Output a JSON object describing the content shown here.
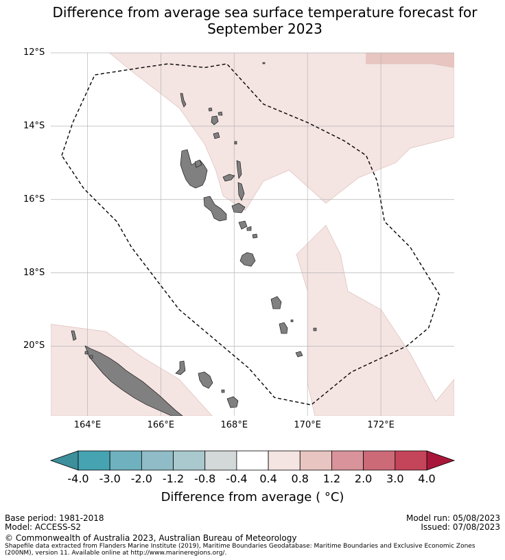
{
  "title_line1": "Difference from average sea surface temperature forecast for",
  "title_line2": "September 2023",
  "chart_data": {
    "type": "heatmap",
    "title": "Difference from average sea surface temperature forecast for September 2023",
    "xlabel": "",
    "ylabel": "",
    "xlim": [
      163,
      174
    ],
    "ylim": [
      -21.9,
      -12
    ],
    "xticks": [
      164,
      166,
      168,
      170,
      172
    ],
    "yticks": [
      -12,
      -14,
      -16,
      -18,
      -20
    ],
    "xtick_labels": [
      "164°E",
      "166°E",
      "168°E",
      "170°E",
      "172°E"
    ],
    "ytick_labels": [
      "12°S",
      "14°S",
      "16°S",
      "18°S",
      "20°S"
    ],
    "grid": true,
    "shaded_regions": [
      {
        "name": "north anomaly region",
        "category": "0.4 to 0.8",
        "lonlat": [
          [
            164.6,
            -12
          ],
          [
            174,
            -12
          ],
          [
            174,
            -14.3
          ],
          [
            172.8,
            -14.6
          ],
          [
            172.4,
            -15
          ],
          [
            171.4,
            -15.4
          ],
          [
            170.5,
            -16.1
          ],
          [
            169.5,
            -15.2
          ],
          [
            168.8,
            -15.5
          ],
          [
            168.3,
            -16.3
          ],
          [
            167.7,
            -15.9
          ],
          [
            167.5,
            -15.2
          ],
          [
            167.2,
            -14.5
          ],
          [
            166.5,
            -13.5
          ],
          [
            165.2,
            -12.5
          ]
        ]
      },
      {
        "name": "north-east warm patch",
        "category": "0.8 to 1.2",
        "lonlat": [
          [
            171.6,
            -12
          ],
          [
            174,
            -12
          ],
          [
            174,
            -12.4
          ],
          [
            173.4,
            -12.3
          ],
          [
            171.6,
            -12.3
          ]
        ]
      },
      {
        "name": "east anomaly region",
        "category": "0.4 to 0.8",
        "lonlat": [
          [
            169.7,
            -17.5
          ],
          [
            170.5,
            -16.7
          ],
          [
            170.9,
            -17.5
          ],
          [
            171.1,
            -18.5
          ],
          [
            172.0,
            -19.0
          ],
          [
            172.8,
            -20.2
          ],
          [
            173.5,
            -21.5
          ],
          [
            174,
            -20.9
          ],
          [
            174,
            -21.9
          ],
          [
            170.2,
            -21.9
          ],
          [
            170.0,
            -21.0
          ],
          [
            170.0,
            -18.5
          ]
        ]
      },
      {
        "name": "south-west anomaly region",
        "category": "0.4 to 0.8",
        "lonlat": [
          [
            163,
            -19.4
          ],
          [
            164.5,
            -19.6
          ],
          [
            165.5,
            -20.3
          ],
          [
            166.5,
            -20.9
          ],
          [
            167.4,
            -21.9
          ],
          [
            163,
            -21.9
          ]
        ]
      }
    ],
    "eez_boundary": [
      [
        163.3,
        -14.8
      ],
      [
        163.6,
        -13.9
      ],
      [
        164.2,
        -12.6
      ],
      [
        165.5,
        -12.4
      ],
      [
        166.2,
        -12.3
      ],
      [
        167.2,
        -12.4
      ],
      [
        167.8,
        -12.3
      ],
      [
        168.8,
        -13.4
      ],
      [
        170.0,
        -13.9
      ],
      [
        171.0,
        -14.4
      ],
      [
        171.6,
        -14.8
      ],
      [
        171.9,
        -15.5
      ],
      [
        172.1,
        -16.6
      ],
      [
        172.8,
        -17.3
      ],
      [
        173.6,
        -18.6
      ],
      [
        173.3,
        -19.5
      ],
      [
        172.7,
        -20.0
      ],
      [
        171.2,
        -20.7
      ],
      [
        170.1,
        -21.6
      ],
      [
        169.1,
        -21.4
      ],
      [
        168.4,
        -20.6
      ],
      [
        166.5,
        -19.0
      ],
      [
        165.2,
        -17.3
      ],
      [
        164.8,
        -16.6
      ],
      [
        163.9,
        -15.7
      ]
    ],
    "colorbar": {
      "label": "Difference from average ( °C)",
      "tick_labels": [
        "-4.0",
        "-3.0",
        "-2.0",
        "-1.2",
        "-0.8",
        "-0.4",
        "0.4",
        "0.8",
        "1.2",
        "2.0",
        "3.0",
        "4.0"
      ],
      "bounds": [
        -4.0,
        -3.0,
        -2.0,
        -1.2,
        -0.8,
        -0.4,
        0.4,
        0.8,
        1.2,
        2.0,
        3.0,
        4.0
      ],
      "colors": [
        "#46a3b2",
        "#6fb1be",
        "#8fbcc6",
        "#a9c9ce",
        "#d3d9d9",
        "#ffffff",
        "#f4e4e2",
        "#e8c5c0",
        "#d9939a",
        "#cc6a78",
        "#c4445a"
      ],
      "under_color": "#3d8f9c",
      "over_color": "#a8173a"
    }
  },
  "colors": {
    "land": "#808080",
    "grid": "#b5b5b5",
    "anomaly_light": "#f4e4e2",
    "anomaly_mid": "#e8c5c0",
    "boundary": "#000000"
  },
  "footer": {
    "base_period": "Base period: 1981-2018",
    "model": "Model: ACCESS-S2",
    "copyright": "© Commonwealth of Australia 2023, Australian Bureau of Meteorology",
    "source_line1": "Shapefile data extracted from Flanders Marine Institute (2019), Maritime Boundaries Geodatabase: Maritime Boundaries and Exclusive Economic Zones",
    "source_line2": "(200NM), version 11. Available online at http://www.marineregions.org/.",
    "model_run": "Model run: 05/08/2023",
    "issued": "Issued: 07/08/2023"
  }
}
